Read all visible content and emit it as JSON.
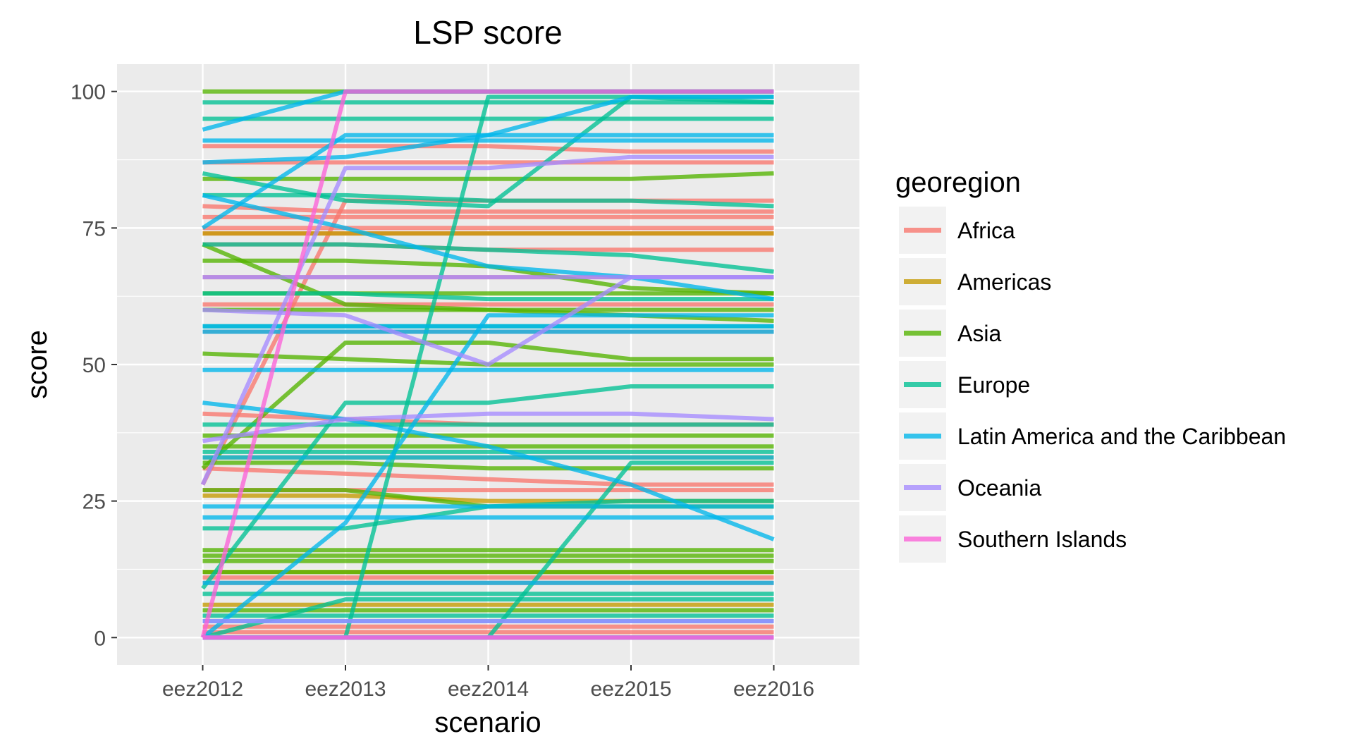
{
  "chart_data": {
    "type": "line",
    "title": "LSP score",
    "xlabel": "scenario",
    "ylabel": "score",
    "categories": [
      "eez2012",
      "eez2013",
      "eez2014",
      "eez2015",
      "eez2016"
    ],
    "ylim": [
      -5,
      105
    ],
    "yticks": [
      0,
      25,
      50,
      75,
      100
    ],
    "grid": true,
    "legend": {
      "title": "georegion",
      "placement": "right",
      "entries": [
        {
          "name": "Africa",
          "color": "#F8766D"
        },
        {
          "name": "Americas",
          "color": "#C49A00"
        },
        {
          "name": "Asia",
          "color": "#53B400"
        },
        {
          "name": "Europe",
          "color": "#00C094"
        },
        {
          "name": "Latin America and the Caribbean",
          "color": "#00B6EB"
        },
        {
          "name": "Oceania",
          "color": "#A58AFF"
        },
        {
          "name": "Southern Islands",
          "color": "#FB61D7"
        }
      ]
    },
    "series": [
      {
        "region": "Africa",
        "values": [
          41,
          40,
          39,
          39,
          39
        ]
      },
      {
        "region": "Africa",
        "values": [
          90,
          90,
          90,
          89,
          89
        ]
      },
      {
        "region": "Africa",
        "values": [
          87,
          87,
          87,
          87,
          87
        ]
      },
      {
        "region": "Africa",
        "values": [
          77,
          77,
          77,
          77,
          77
        ]
      },
      {
        "region": "Africa",
        "values": [
          75,
          75,
          75,
          75,
          75
        ]
      },
      {
        "region": "Africa",
        "values": [
          74,
          74,
          74,
          74,
          74
        ]
      },
      {
        "region": "Africa",
        "values": [
          79,
          78,
          78,
          78,
          78
        ]
      },
      {
        "region": "Africa",
        "values": [
          66,
          66,
          66,
          66,
          66
        ]
      },
      {
        "region": "Africa",
        "values": [
          61,
          61,
          61,
          61,
          61
        ]
      },
      {
        "region": "Africa",
        "values": [
          56,
          56,
          56,
          56,
          56
        ]
      },
      {
        "region": "Africa",
        "values": [
          31,
          30,
          29,
          28,
          28
        ]
      },
      {
        "region": "Africa",
        "values": [
          27,
          27,
          27,
          27,
          27
        ]
      },
      {
        "region": "Africa",
        "values": [
          11,
          11,
          11,
          11,
          11
        ]
      },
      {
        "region": "Africa",
        "values": [
          10,
          10,
          10,
          10,
          10
        ]
      },
      {
        "region": "Africa",
        "values": [
          2,
          2,
          2,
          2,
          2
        ]
      },
      {
        "region": "Africa",
        "values": [
          1,
          1,
          1,
          1,
          1
        ]
      },
      {
        "region": "Africa",
        "values": [
          28,
          80,
          80,
          80,
          80
        ]
      },
      {
        "region": "Africa",
        "values": [
          72,
          72,
          71,
          71,
          71
        ]
      },
      {
        "region": "Americas",
        "values": [
          26,
          26,
          25,
          25,
          25
        ]
      },
      {
        "region": "Americas",
        "values": [
          12,
          12,
          12,
          12,
          12
        ]
      },
      {
        "region": "Americas",
        "values": [
          74,
          74,
          74,
          74,
          74
        ]
      },
      {
        "region": "Americas",
        "values": [
          33,
          33,
          33,
          33,
          33
        ]
      },
      {
        "region": "Americas",
        "values": [
          6,
          6,
          6,
          6,
          6
        ]
      },
      {
        "region": "Asia",
        "values": [
          100,
          100,
          100,
          100,
          100
        ]
      },
      {
        "region": "Asia",
        "values": [
          84,
          84,
          84,
          84,
          85
        ]
      },
      {
        "region": "Asia",
        "values": [
          72,
          61,
          60,
          59,
          58
        ]
      },
      {
        "region": "Asia",
        "values": [
          69,
          69,
          68,
          64,
          63
        ]
      },
      {
        "region": "Asia",
        "values": [
          63,
          63,
          63,
          63,
          63
        ]
      },
      {
        "region": "Asia",
        "values": [
          60,
          60,
          60,
          60,
          60
        ]
      },
      {
        "region": "Asia",
        "values": [
          52,
          51,
          50,
          50,
          50
        ]
      },
      {
        "region": "Asia",
        "values": [
          37,
          37,
          37,
          37,
          37
        ]
      },
      {
        "region": "Asia",
        "values": [
          35,
          35,
          35,
          35,
          35
        ]
      },
      {
        "region": "Asia",
        "values": [
          32,
          32,
          31,
          31,
          31
        ]
      },
      {
        "region": "Asia",
        "values": [
          27,
          27,
          24,
          24,
          24
        ]
      },
      {
        "region": "Asia",
        "values": [
          16,
          16,
          16,
          16,
          16
        ]
      },
      {
        "region": "Asia",
        "values": [
          15,
          15,
          15,
          15,
          15
        ]
      },
      {
        "region": "Asia",
        "values": [
          14,
          14,
          14,
          14,
          14
        ]
      },
      {
        "region": "Asia",
        "values": [
          12,
          12,
          12,
          12,
          12
        ]
      },
      {
        "region": "Asia",
        "values": [
          5,
          5,
          5,
          5,
          5
        ]
      },
      {
        "region": "Asia",
        "values": [
          0,
          0,
          0,
          0,
          0
        ]
      },
      {
        "region": "Asia",
        "values": [
          31,
          54,
          54,
          51,
          51
        ]
      },
      {
        "region": "Europe",
        "values": [
          98,
          98,
          98,
          98,
          98
        ]
      },
      {
        "region": "Europe",
        "values": [
          95,
          95,
          95,
          95,
          95
        ]
      },
      {
        "region": "Europe",
        "values": [
          81,
          81,
          80,
          80,
          79
        ]
      },
      {
        "region": "Europe",
        "values": [
          72,
          72,
          71,
          70,
          67
        ]
      },
      {
        "region": "Europe",
        "values": [
          63,
          63,
          62,
          62,
          62
        ]
      },
      {
        "region": "Europe",
        "values": [
          57,
          57,
          57,
          57,
          57
        ]
      },
      {
        "region": "Europe",
        "values": [
          39,
          39,
          39,
          39,
          39
        ]
      },
      {
        "region": "Europe",
        "values": [
          34,
          34,
          34,
          34,
          34
        ]
      },
      {
        "region": "Europe",
        "values": [
          20,
          20,
          24,
          25,
          25
        ]
      },
      {
        "region": "Europe",
        "values": [
          9,
          43,
          43,
          46,
          46
        ]
      },
      {
        "region": "Europe",
        "values": [
          8,
          8,
          8,
          8,
          8
        ]
      },
      {
        "region": "Europe",
        "values": [
          4,
          4,
          4,
          4,
          4
        ]
      },
      {
        "region": "Europe",
        "values": [
          0,
          0,
          99,
          99,
          99
        ]
      },
      {
        "region": "Europe",
        "values": [
          0,
          7,
          7,
          7,
          7
        ]
      },
      {
        "region": "Europe",
        "values": [
          0,
          0,
          0,
          32,
          32
        ]
      },
      {
        "region": "Europe",
        "values": [
          85,
          80,
          79,
          99,
          98
        ]
      },
      {
        "region": "Latin America and the Caribbean",
        "values": [
          93,
          100,
          100,
          100,
          100
        ]
      },
      {
        "region": "Latin America and the Caribbean",
        "values": [
          91,
          91,
          91,
          91,
          91
        ]
      },
      {
        "region": "Latin America and the Caribbean",
        "values": [
          87,
          88,
          92,
          99,
          99
        ]
      },
      {
        "region": "Latin America and the Caribbean",
        "values": [
          75,
          92,
          92,
          92,
          92
        ]
      },
      {
        "region": "Latin America and the Caribbean",
        "values": [
          81,
          75,
          68,
          66,
          62
        ]
      },
      {
        "region": "Latin America and the Caribbean",
        "values": [
          57,
          57,
          57,
          57,
          57
        ]
      },
      {
        "region": "Latin America and the Caribbean",
        "values": [
          56,
          56,
          56,
          56,
          56
        ]
      },
      {
        "region": "Latin America and the Caribbean",
        "values": [
          49,
          49,
          49,
          49,
          49
        ]
      },
      {
        "region": "Latin America and the Caribbean",
        "values": [
          43,
          40,
          35,
          28,
          18
        ]
      },
      {
        "region": "Latin America and the Caribbean",
        "values": [
          33,
          33,
          33,
          33,
          33
        ]
      },
      {
        "region": "Latin America and the Caribbean",
        "values": [
          24,
          24,
          24,
          24,
          24
        ]
      },
      {
        "region": "Latin America and the Caribbean",
        "values": [
          22,
          22,
          22,
          22,
          22
        ]
      },
      {
        "region": "Latin America and the Caribbean",
        "values": [
          10,
          10,
          10,
          10,
          10
        ]
      },
      {
        "region": "Latin America and the Caribbean",
        "values": [
          3,
          3,
          3,
          3,
          3
        ]
      },
      {
        "region": "Latin America and the Caribbean",
        "values": [
          0,
          0,
          0,
          0,
          0
        ]
      },
      {
        "region": "Latin America and the Caribbean",
        "values": [
          0,
          21,
          59,
          59,
          59
        ]
      },
      {
        "region": "Oceania",
        "values": [
          66,
          66,
          66,
          66,
          66
        ]
      },
      {
        "region": "Oceania",
        "values": [
          60,
          59,
          50,
          66,
          66
        ]
      },
      {
        "region": "Oceania",
        "values": [
          36,
          40,
          41,
          41,
          40
        ]
      },
      {
        "region": "Oceania",
        "values": [
          28,
          86,
          86,
          88,
          88
        ]
      },
      {
        "region": "Oceania",
        "values": [
          3,
          3,
          3,
          3,
          3
        ]
      },
      {
        "region": "Oceania",
        "values": [
          0,
          0,
          0,
          0,
          0
        ]
      },
      {
        "region": "Southern Islands",
        "values": [
          0,
          100,
          100,
          100,
          100
        ]
      },
      {
        "region": "Southern Islands",
        "values": [
          0,
          0,
          0,
          0,
          0
        ]
      }
    ]
  }
}
